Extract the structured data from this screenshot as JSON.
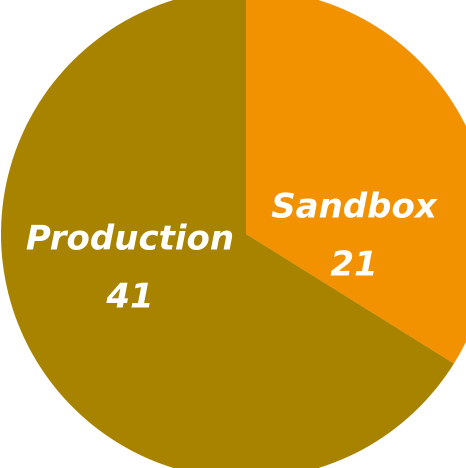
{
  "chart_data": {
    "type": "pie",
    "slices": [
      {
        "label": "Sandbox",
        "value": 21,
        "color": "#f39200"
      },
      {
        "label": "Production",
        "value": 41,
        "color": "#a78300"
      }
    ],
    "start_angle_deg": 0,
    "direction": "clockwise",
    "legend": "none",
    "data_labels": "inside"
  }
}
